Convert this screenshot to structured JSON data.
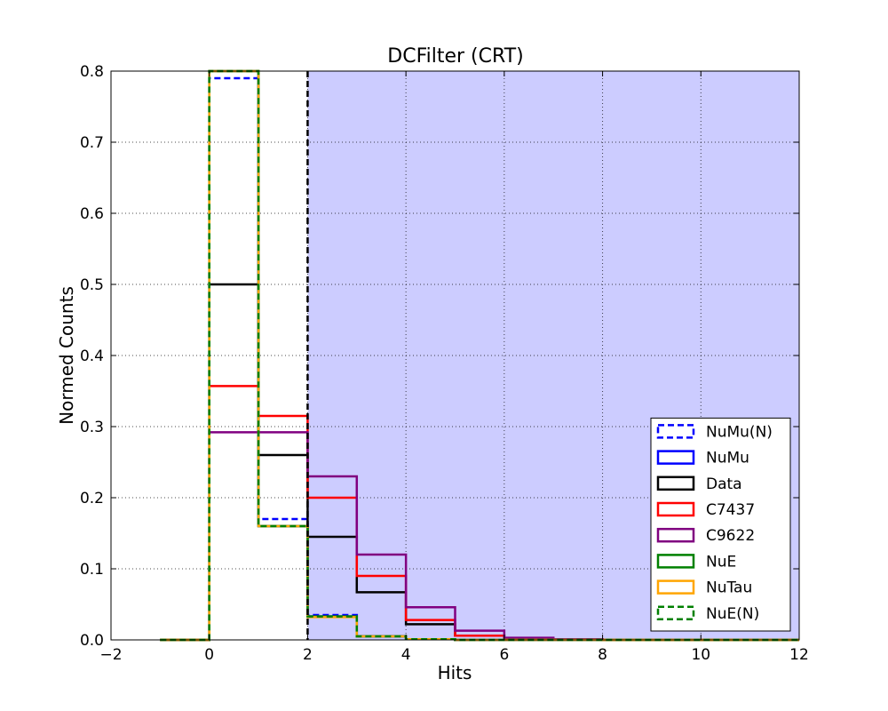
{
  "chart_data": {
    "type": "histogram-step",
    "title": "DCFilter (CRT)",
    "xlabel": "Hits",
    "ylabel": "Normed Counts",
    "xlim": [
      -2,
      12
    ],
    "ylim": [
      0,
      0.8
    ],
    "x_ticks": [
      "−2",
      "0",
      "2",
      "4",
      "6",
      "8",
      "10",
      "12"
    ],
    "y_ticks": [
      "0.0",
      "0.1",
      "0.2",
      "0.3",
      "0.4",
      "0.5",
      "0.6",
      "0.7",
      "0.8"
    ],
    "x_tick_values": [
      -2,
      0,
      2,
      4,
      6,
      8,
      10,
      12
    ],
    "y_tick_values": [
      0,
      0.1,
      0.2,
      0.3,
      0.4,
      0.5,
      0.6,
      0.7,
      0.8
    ],
    "grid": true,
    "legend_position": "lower-right",
    "cut": {
      "x": 2,
      "shaded_region": [
        2,
        12
      ],
      "shade_color": "#ccccff",
      "line_color": "#000000"
    },
    "bin_edges": [
      -1,
      0,
      1,
      2,
      3,
      4,
      5,
      6,
      7,
      8,
      9,
      10,
      11,
      12
    ],
    "series": [
      {
        "name": "NuMu(N)",
        "color": "#0000ff",
        "dashed": true,
        "values": [
          0,
          0.79,
          0.17,
          0.035,
          0.005,
          0.001,
          0,
          0,
          0,
          0,
          0,
          0,
          0
        ]
      },
      {
        "name": "NuMu",
        "color": "#0000ff",
        "dashed": false,
        "values": [
          0,
          0.8,
          0.16,
          0.033,
          0.005,
          0.001,
          0,
          0,
          0,
          0,
          0,
          0,
          0
        ]
      },
      {
        "name": "Data",
        "color": "#000000",
        "dashed": false,
        "values": [
          0,
          0.5,
          0.26,
          0.145,
          0.067,
          0.022,
          0.006,
          0.002,
          0.001,
          0,
          0,
          0,
          0
        ]
      },
      {
        "name": "C7437",
        "color": "#ff0000",
        "dashed": false,
        "values": [
          0,
          0.357,
          0.315,
          0.2,
          0.09,
          0.028,
          0.006,
          0.002,
          0.001,
          0,
          0,
          0,
          0
        ]
      },
      {
        "name": "C9622",
        "color": "#800080",
        "dashed": false,
        "values": [
          0,
          0.292,
          0.292,
          0.23,
          0.12,
          0.046,
          0.013,
          0.003,
          0.001,
          0,
          0,
          0,
          0
        ]
      },
      {
        "name": "NuE",
        "color": "#008000",
        "dashed": false,
        "values": [
          0,
          0.8,
          0.16,
          0.033,
          0.005,
          0.001,
          0,
          0,
          0,
          0,
          0,
          0,
          0
        ]
      },
      {
        "name": "NuTau",
        "color": "#ffa500",
        "dashed": false,
        "values": [
          0,
          0.8,
          0.16,
          0.032,
          0.005,
          0.001,
          0,
          0,
          0,
          0,
          0,
          0,
          0
        ]
      },
      {
        "name": "NuE(N)",
        "color": "#008000",
        "dashed": true,
        "values": [
          0,
          0.8,
          0.16,
          0.033,
          0.005,
          0.001,
          0,
          0,
          0,
          0,
          0,
          0,
          0
        ]
      }
    ]
  }
}
